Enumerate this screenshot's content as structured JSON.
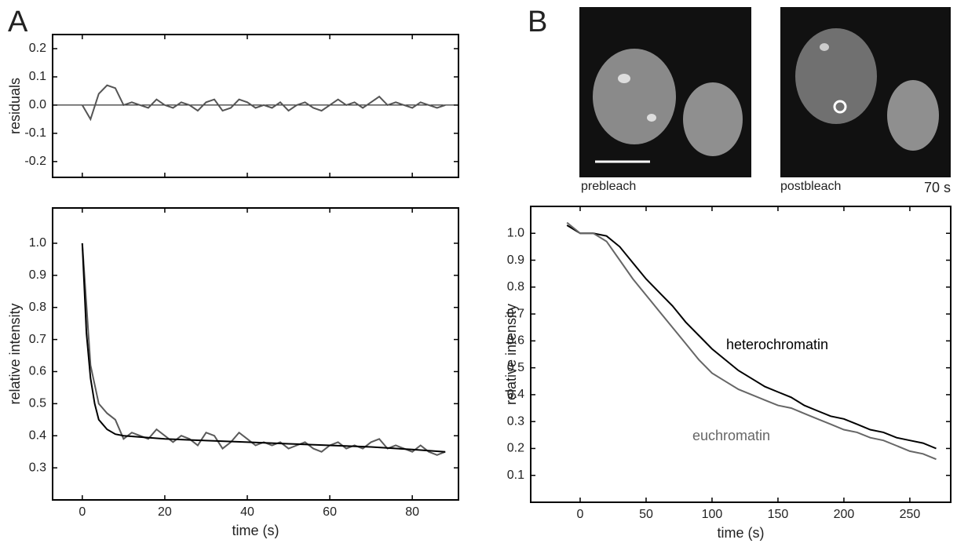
{
  "panel_labels": [
    "A",
    "B"
  ],
  "images": [
    {
      "label": "prebleach"
    },
    {
      "label": "postbleach",
      "time": "70 s"
    }
  ],
  "chart_data": [
    {
      "type": "line",
      "ylabel": "residuals",
      "xlim": [
        -7.2,
        91.2
      ],
      "xticks": [
        0,
        20,
        40,
        60,
        80
      ],
      "ylim": [
        -0.256,
        0.25
      ],
      "yticks": [
        -0.2,
        -0.1,
        {
          "value": 0,
          "label": "0.0"
        },
        0.1,
        0.2
      ],
      "zero_line": true,
      "series": [
        {
          "color": "#555555",
          "x": [
            0,
            2,
            4,
            6,
            8,
            10,
            12,
            14,
            16,
            18,
            20,
            22,
            24,
            26,
            28,
            30,
            32,
            34,
            36,
            38,
            40,
            42,
            44,
            46,
            48,
            50,
            52,
            54,
            56,
            58,
            60,
            62,
            64,
            66,
            68,
            70,
            72,
            74,
            76,
            78,
            80,
            82,
            84,
            86,
            88
          ],
          "values": [
            0.0,
            -0.05,
            0.04,
            0.07,
            0.06,
            0.0,
            0.01,
            0.0,
            -0.01,
            0.02,
            0.0,
            -0.01,
            0.01,
            0.0,
            -0.02,
            0.01,
            0.02,
            -0.02,
            -0.01,
            0.02,
            0.01,
            -0.01,
            0.0,
            -0.01,
            0.01,
            -0.02,
            0.0,
            0.01,
            -0.01,
            -0.02,
            0.0,
            0.02,
            0.0,
            0.01,
            -0.01,
            0.01,
            0.03,
            0.0,
            0.01,
            0.0,
            -0.01,
            0.01,
            0.0,
            -0.01,
            0.0
          ]
        }
      ]
    },
    {
      "type": "line",
      "xlabel": "time (s)",
      "ylabel": "relative intensity",
      "xlim": [
        -7.2,
        91.2
      ],
      "xticks": [
        0,
        20,
        40,
        60,
        80
      ],
      "ylim": [
        0.2,
        1.11
      ],
      "yticks": [
        0.3,
        0.4,
        0.5,
        0.6,
        0.7,
        0.8,
        0.9,
        {
          "value": 1,
          "label": "1.0"
        }
      ],
      "series": [
        {
          "color": "#5a5a5a",
          "x": [
            0,
            2,
            4,
            6,
            8,
            10,
            12,
            14,
            16,
            18,
            20,
            22,
            24,
            26,
            28,
            30,
            32,
            34,
            36,
            38,
            40,
            42,
            44,
            46,
            48,
            50,
            52,
            54,
            56,
            58,
            60,
            62,
            64,
            66,
            68,
            70,
            72,
            74,
            76,
            78,
            80,
            82,
            84,
            86,
            88
          ],
          "values": [
            1.0,
            0.62,
            0.5,
            0.47,
            0.45,
            0.39,
            0.41,
            0.4,
            0.39,
            0.42,
            0.4,
            0.38,
            0.4,
            0.39,
            0.37,
            0.41,
            0.4,
            0.36,
            0.38,
            0.41,
            0.39,
            0.37,
            0.38,
            0.37,
            0.38,
            0.36,
            0.37,
            0.38,
            0.36,
            0.35,
            0.37,
            0.38,
            0.36,
            0.37,
            0.36,
            0.38,
            0.39,
            0.36,
            0.37,
            0.36,
            0.35,
            0.37,
            0.35,
            0.34,
            0.35
          ]
        },
        {
          "color": "#000000",
          "x": [
            0,
            1,
            2,
            3,
            4,
            6,
            8,
            10,
            15,
            20,
            30,
            40,
            50,
            60,
            70,
            80,
            88
          ],
          "values": [
            1.0,
            0.72,
            0.58,
            0.5,
            0.45,
            0.42,
            0.405,
            0.4,
            0.395,
            0.39,
            0.385,
            0.38,
            0.375,
            0.37,
            0.365,
            0.357,
            0.35
          ]
        }
      ]
    },
    {
      "type": "line",
      "xlabel": "time (s)",
      "ylabel": "relative intensity",
      "xlim": [
        -37.5,
        281
      ],
      "xticks": [
        0,
        50,
        100,
        150,
        200,
        250
      ],
      "ylim": [
        0,
        1.1
      ],
      "yticks": [
        0.1,
        0.2,
        0.3,
        0.4,
        0.5,
        0.6,
        0.7,
        0.8,
        0.9,
        {
          "value": 1,
          "label": "1.0"
        }
      ],
      "series": [
        {
          "name": "heterochromatin",
          "color": "#000000",
          "x": [
            -10,
            0,
            10,
            20,
            30,
            40,
            50,
            60,
            70,
            80,
            90,
            100,
            110,
            120,
            130,
            140,
            150,
            160,
            170,
            180,
            190,
            200,
            210,
            220,
            230,
            240,
            250,
            260,
            270
          ],
          "values": [
            1.03,
            1.0,
            1.0,
            0.99,
            0.95,
            0.89,
            0.83,
            0.78,
            0.73,
            0.67,
            0.62,
            0.57,
            0.53,
            0.49,
            0.46,
            0.43,
            0.41,
            0.39,
            0.36,
            0.34,
            0.32,
            0.31,
            0.29,
            0.27,
            0.26,
            0.24,
            0.23,
            0.22,
            0.2
          ]
        },
        {
          "name": "euchromatin",
          "color": "#666666",
          "x": [
            -10,
            0,
            10,
            20,
            30,
            40,
            50,
            60,
            70,
            80,
            90,
            100,
            110,
            120,
            130,
            140,
            150,
            160,
            170,
            180,
            190,
            200,
            210,
            220,
            230,
            240,
            250,
            260,
            270
          ],
          "values": [
            1.04,
            1.0,
            1.0,
            0.97,
            0.9,
            0.83,
            0.77,
            0.71,
            0.65,
            0.59,
            0.53,
            0.48,
            0.45,
            0.42,
            0.4,
            0.38,
            0.36,
            0.35,
            0.33,
            0.31,
            0.29,
            0.27,
            0.26,
            0.24,
            0.23,
            0.21,
            0.19,
            0.18,
            0.16
          ]
        }
      ]
    }
  ]
}
